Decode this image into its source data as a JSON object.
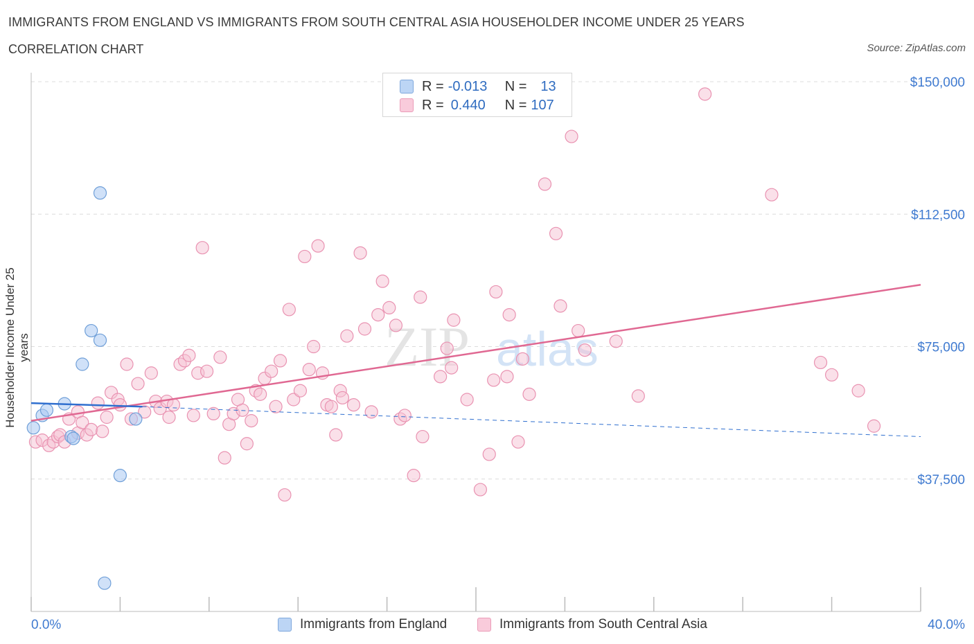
{
  "header": {
    "title": "IMMIGRANTS FROM ENGLAND VS IMMIGRANTS FROM SOUTH CENTRAL ASIA HOUSEHOLDER INCOME UNDER 25 YEARS",
    "subtitle": "CORRELATION CHART",
    "source": "Source: ZipAtlas.com"
  },
  "legend": {
    "england": {
      "r_label": "R =",
      "r_value": "-0.013",
      "n_label": "N =",
      "n_value": "13"
    },
    "asia": {
      "r_label": "R =",
      "r_value": "0.440",
      "n_label": "N =",
      "n_value": "107"
    }
  },
  "bottom_legend": {
    "england": "Immigrants from England",
    "asia": "Immigrants from South Central Asia"
  },
  "watermark": {
    "zip": "ZIP",
    "atlas": "atlas"
  },
  "colors": {
    "england_fill": "#a9c9f2",
    "england_stroke": "#6f9fd8",
    "england_line": "#2f6fcf",
    "asia_fill": "#f6c1d3",
    "asia_stroke": "#e992b1",
    "asia_line": "#e06892",
    "tick_label": "#3f7ad0",
    "grid": "#dcdcdc"
  },
  "chart_data": {
    "type": "scatter",
    "ylabel": "Householder Income Under 25 years",
    "xlim": [
      0,
      40
    ],
    "ylim": [
      0,
      150000
    ],
    "x_tick_labels": [
      {
        "x": 0,
        "label": "0.0%"
      },
      {
        "x": 40,
        "label": "40.0%"
      }
    ],
    "y_ticks": [
      37500,
      75000,
      112500,
      150000
    ],
    "y_tick_labels": [
      "$37,500",
      "$75,000",
      "$112,500",
      "$150,000"
    ],
    "grid": true,
    "series": [
      {
        "name": "Immigrants from England",
        "color": "#a9c9f2",
        "points": [
          [
            0.1,
            52000
          ],
          [
            0.5,
            55500
          ],
          [
            0.7,
            57000
          ],
          [
            1.5,
            58800
          ],
          [
            1.8,
            49500
          ],
          [
            1.9,
            49000
          ],
          [
            2.3,
            70000
          ],
          [
            2.7,
            79500
          ],
          [
            3.1,
            76800
          ],
          [
            3.1,
            118500
          ],
          [
            4.0,
            38500
          ],
          [
            4.7,
            54500
          ],
          [
            3.3,
            8000
          ]
        ],
        "trend": {
          "x": [
            0,
            5
          ],
          "y": [
            59000,
            58000
          ]
        },
        "trend_extended": {
          "x": [
            5,
            40
          ],
          "y": [
            58000,
            49500
          ]
        }
      },
      {
        "name": "Immigrants from South Central Asia",
        "color": "#f6c1d3",
        "points": [
          [
            0.2,
            48000
          ],
          [
            0.5,
            48500
          ],
          [
            0.8,
            47000
          ],
          [
            1.0,
            48000
          ],
          [
            1.2,
            49500
          ],
          [
            1.3,
            50000
          ],
          [
            1.5,
            48000
          ],
          [
            1.7,
            54500
          ],
          [
            2.1,
            50500
          ],
          [
            2.1,
            56500
          ],
          [
            2.3,
            53500
          ],
          [
            2.5,
            50000
          ],
          [
            2.7,
            51500
          ],
          [
            3.0,
            59000
          ],
          [
            3.2,
            51000
          ],
          [
            3.4,
            55000
          ],
          [
            3.6,
            62000
          ],
          [
            3.9,
            60000
          ],
          [
            4.0,
            58500
          ],
          [
            4.3,
            70000
          ],
          [
            4.5,
            54500
          ],
          [
            4.8,
            64500
          ],
          [
            5.1,
            56500
          ],
          [
            5.4,
            67500
          ],
          [
            5.6,
            59500
          ],
          [
            5.8,
            57500
          ],
          [
            6.1,
            59500
          ],
          [
            6.2,
            55000
          ],
          [
            6.4,
            58500
          ],
          [
            6.7,
            70000
          ],
          [
            6.9,
            71000
          ],
          [
            7.1,
            72500
          ],
          [
            7.3,
            55500
          ],
          [
            7.5,
            67500
          ],
          [
            7.7,
            103000
          ],
          [
            7.9,
            68000
          ],
          [
            8.2,
            56000
          ],
          [
            8.5,
            72000
          ],
          [
            8.7,
            43500
          ],
          [
            8.9,
            53000
          ],
          [
            9.1,
            56000
          ],
          [
            9.3,
            60000
          ],
          [
            9.5,
            57000
          ],
          [
            9.7,
            47500
          ],
          [
            9.9,
            54000
          ],
          [
            10.1,
            62500
          ],
          [
            10.3,
            61500
          ],
          [
            10.5,
            66000
          ],
          [
            10.8,
            68000
          ],
          [
            11.0,
            58000
          ],
          [
            11.2,
            71000
          ],
          [
            11.4,
            33000
          ],
          [
            11.6,
            85500
          ],
          [
            11.8,
            60000
          ],
          [
            12.1,
            62500
          ],
          [
            12.3,
            100500
          ],
          [
            12.5,
            68500
          ],
          [
            12.7,
            75000
          ],
          [
            12.9,
            103500
          ],
          [
            13.1,
            67500
          ],
          [
            13.3,
            58500
          ],
          [
            13.5,
            58000
          ],
          [
            13.7,
            50000
          ],
          [
            13.9,
            62500
          ],
          [
            14.0,
            60500
          ],
          [
            14.2,
            78000
          ],
          [
            14.5,
            58500
          ],
          [
            14.8,
            101500
          ],
          [
            15.0,
            80000
          ],
          [
            15.3,
            56500
          ],
          [
            15.6,
            84000
          ],
          [
            15.8,
            93500
          ],
          [
            16.1,
            86000
          ],
          [
            16.4,
            81000
          ],
          [
            16.6,
            54500
          ],
          [
            16.8,
            55500
          ],
          [
            17.2,
            38500
          ],
          [
            17.5,
            89000
          ],
          [
            17.6,
            49500
          ],
          [
            18.4,
            66500
          ],
          [
            18.7,
            74500
          ],
          [
            18.9,
            69000
          ],
          [
            19.0,
            82500
          ],
          [
            19.6,
            60000
          ],
          [
            20.2,
            34500
          ],
          [
            20.6,
            44500
          ],
          [
            20.8,
            65500
          ],
          [
            20.9,
            90500
          ],
          [
            21.4,
            66500
          ],
          [
            21.5,
            84000
          ],
          [
            21.9,
            48000
          ],
          [
            22.1,
            71500
          ],
          [
            22.4,
            61500
          ],
          [
            23.1,
            121000
          ],
          [
            23.6,
            107000
          ],
          [
            23.8,
            86500
          ],
          [
            24.3,
            134500
          ],
          [
            24.6,
            79500
          ],
          [
            24.9,
            74000
          ],
          [
            26.3,
            76500
          ],
          [
            27.3,
            61000
          ],
          [
            30.3,
            146500
          ],
          [
            33.3,
            118000
          ],
          [
            35.5,
            70500
          ],
          [
            36.0,
            67000
          ],
          [
            37.2,
            62500
          ],
          [
            37.9,
            52500
          ]
        ],
        "trend": {
          "x": [
            0,
            40
          ],
          "y": [
            54000,
            92500
          ]
        }
      }
    ]
  }
}
